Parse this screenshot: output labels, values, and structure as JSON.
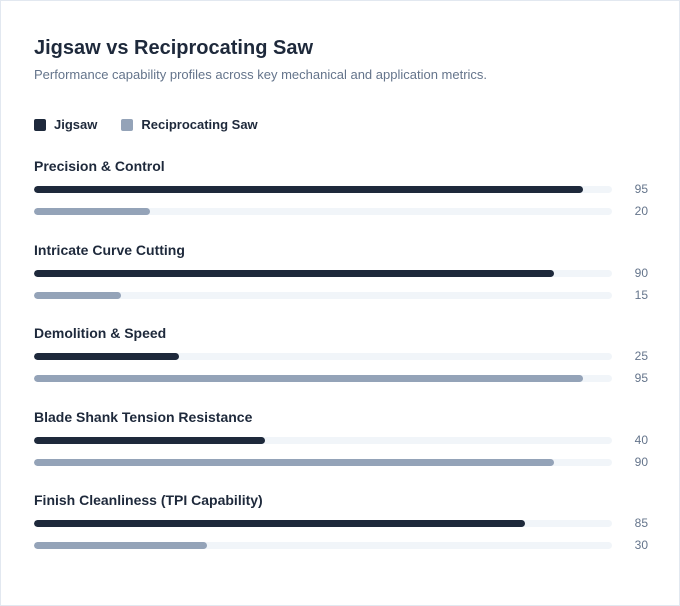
{
  "chart_data": {
    "type": "bar",
    "orientation": "horizontal",
    "title": "Jigsaw vs Reciprocating Saw",
    "subtitle": "Performance capability profiles across key mechanical and application metrics.",
    "xlim": [
      0,
      100
    ],
    "legend_position": "top-left",
    "categories": [
      "Precision & Control",
      "Intricate Curve Cutting",
      "Demolition & Speed",
      "Blade Shank Tension Resistance",
      "Finish Cleanliness (TPI Capability)"
    ],
    "series": [
      {
        "name": "Jigsaw",
        "color": "#1e293b",
        "values": [
          95,
          90,
          25,
          40,
          85
        ]
      },
      {
        "name": "Reciprocating Saw",
        "color": "#94a3b8",
        "values": [
          20,
          15,
          95,
          90,
          30
        ]
      }
    ]
  }
}
